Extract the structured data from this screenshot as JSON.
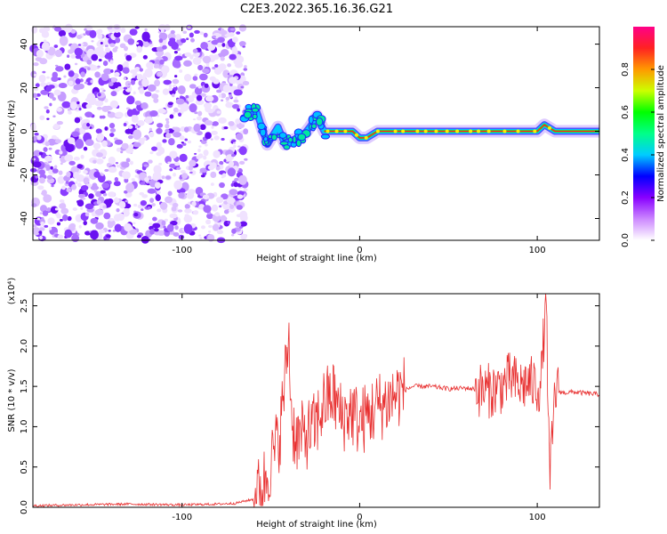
{
  "title": "C2E3.2022.365.16.36.G21",
  "chart_data": [
    {
      "type": "heatmap",
      "title": "C2E3.2022.365.16.36.G21",
      "xlabel": "Height of straight line (km)",
      "ylabel": "Frequency (Hz)",
      "xlim": [
        -184,
        135
      ],
      "ylim": [
        -50,
        48
      ],
      "x_ticks": [
        -100,
        0,
        100
      ],
      "y_ticks": [
        -40,
        -20,
        0,
        20,
        40
      ],
      "colorbar": {
        "label": "Normalized spectral amplitude",
        "range": [
          0.0,
          1.0
        ],
        "ticks": [
          "0.0",
          "0.2",
          "0.4",
          "0.6",
          "0.8"
        ],
        "colors": [
          "#ffffff",
          "#cc88ff",
          "#8800ff",
          "#0000ff",
          "#00ccff",
          "#00ff88",
          "#00ff00",
          "#ccff00",
          "#ff9900",
          "#ff2222",
          "#ff0088"
        ]
      },
      "noise_region_x": [
        -184,
        -67
      ],
      "carrier": {
        "x": [
          -65,
          -58,
          -52,
          -46,
          -42,
          -38,
          -33,
          -28,
          -24,
          -20,
          -14,
          -8,
          -4,
          0,
          4,
          10,
          20,
          40,
          60,
          80,
          95,
          100,
          104,
          110,
          135
        ],
        "y": [
          8,
          9,
          -6,
          2,
          -6,
          -4,
          -3,
          2,
          7,
          0,
          0,
          0,
          0,
          -3,
          -3,
          0,
          0,
          0,
          0,
          0,
          0,
          0,
          3,
          0,
          0
        ]
      }
    },
    {
      "type": "line",
      "xlabel": "Height of straight line (km)",
      "ylabel": "SNR (10 * v/v)",
      "y_multiplier": "(x10⁴)",
      "xlim": [
        -184,
        135
      ],
      "ylim": [
        0,
        2.65
      ],
      "x_ticks": [
        -100,
        0,
        100
      ],
      "y_ticks": [
        "0.0",
        "0.5",
        "1.0",
        "1.5",
        "2.0",
        "2.5"
      ],
      "series": [
        {
          "color": "#e83030",
          "x": [
            -184,
            -160,
            -130,
            -100,
            -80,
            -70,
            -60,
            -55,
            -50,
            -45,
            -42,
            -40,
            -38,
            -35,
            -30,
            -25,
            -20,
            -15,
            -10,
            -5,
            0,
            5,
            10,
            15,
            20,
            25,
            30,
            40,
            50,
            60,
            70,
            75,
            80,
            85,
            90,
            95,
            100,
            102,
            105,
            107,
            110,
            115,
            120,
            125,
            135
          ],
          "y": [
            0.02,
            0.03,
            0.04,
            0.03,
            0.04,
            0.05,
            0.1,
            0.25,
            0.55,
            0.9,
            1.6,
            2.15,
            1.0,
            0.85,
            0.9,
            1.0,
            1.3,
            1.4,
            1.1,
            1.2,
            1.05,
            1.15,
            1.25,
            1.3,
            1.4,
            1.45,
            1.5,
            1.5,
            1.47,
            1.48,
            1.45,
            1.45,
            1.5,
            1.6,
            1.5,
            1.55,
            1.5,
            1.5,
            2.65,
            0.25,
            1.45,
            1.42,
            1.43,
            1.42,
            1.4
          ]
        }
      ]
    }
  ]
}
